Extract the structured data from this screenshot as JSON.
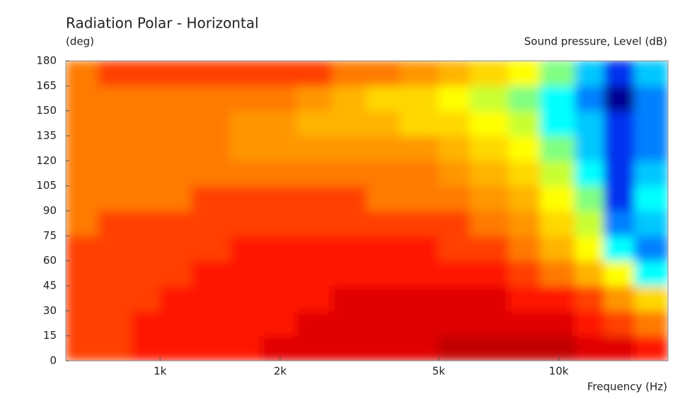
{
  "chart_data": {
    "type": "contour",
    "title": "Radiation Polar - Horizontal",
    "y_label": "(deg)",
    "z_label": "Sound pressure, Level  (dB)",
    "x_label": "Frequency  (Hz)",
    "log_x": true,
    "xlim": [
      580,
      18800
    ],
    "xticks": [
      {
        "value": 1000,
        "label": "1k"
      },
      {
        "value": 2000,
        "label": "2k"
      },
      {
        "value": 5000,
        "label": "5k"
      },
      {
        "value": 10000,
        "label": "10k"
      }
    ],
    "ylim": [
      0,
      180
    ],
    "yticks": [
      0,
      15,
      30,
      45,
      60,
      75,
      90,
      105,
      120,
      135,
      150,
      165,
      180
    ],
    "x_edges": [
      580,
      700,
      850,
      1000,
      1200,
      1500,
      1800,
      2200,
      2700,
      3300,
      4000,
      5000,
      6000,
      7500,
      9000,
      11000,
      13000,
      15500,
      18800
    ],
    "y_edges": [
      0,
      15,
      30,
      45,
      60,
      75,
      90,
      105,
      120,
      135,
      150,
      165,
      180
    ],
    "levels": [
      0,
      -3,
      -6,
      -9,
      -12,
      -15,
      -18,
      -21,
      -24,
      -27,
      -30,
      -33,
      -36,
      -39,
      -42,
      -45
    ],
    "colors": [
      "#c00000",
      "#e00000",
      "#ff1400",
      "#ff4000",
      "#ff7a00",
      "#ff9600",
      "#ffb400",
      "#ffd800",
      "#ffff00",
      "#c8ff30",
      "#80ff80",
      "#00ffff",
      "#00c8ff",
      "#0080ff",
      "#0030f0",
      "#000090"
    ],
    "z": [
      [
        -9,
        -9,
        -6,
        -6,
        -6,
        -6,
        -3,
        -3,
        -3,
        -3,
        -3,
        0,
        0,
        0,
        0,
        -3,
        -3,
        -6
      ],
      [
        -9,
        -9,
        -6,
        -6,
        -6,
        -6,
        -6,
        -3,
        -3,
        -3,
        -3,
        -3,
        -3,
        -3,
        -3,
        -6,
        -9,
        -12
      ],
      [
        -9,
        -9,
        -9,
        -6,
        -6,
        -6,
        -6,
        -6,
        -3,
        -3,
        -3,
        -3,
        -3,
        -6,
        -6,
        -9,
        -15,
        -21
      ],
      [
        -9,
        -9,
        -9,
        -9,
        -6,
        -6,
        -6,
        -6,
        -6,
        -6,
        -6,
        -6,
        -6,
        -9,
        -12,
        -18,
        -24,
        -33
      ],
      [
        -9,
        -9,
        -9,
        -9,
        -9,
        -6,
        -6,
        -6,
        -6,
        -6,
        -6,
        -9,
        -9,
        -12,
        -18,
        -24,
        -33,
        -39
      ],
      [
        -12,
        -9,
        -9,
        -9,
        -9,
        -9,
        -9,
        -9,
        -9,
        -9,
        -9,
        -9,
        -12,
        -15,
        -21,
        -27,
        -39,
        -36
      ],
      [
        -12,
        -12,
        -12,
        -12,
        -9,
        -9,
        -9,
        -9,
        -9,
        -12,
        -12,
        -12,
        -15,
        -18,
        -24,
        -30,
        -42,
        -33
      ],
      [
        -12,
        -12,
        -12,
        -12,
        -12,
        -12,
        -12,
        -12,
        -12,
        -12,
        -12,
        -15,
        -18,
        -21,
        -27,
        -33,
        -42,
        -36
      ],
      [
        -12,
        -12,
        -12,
        -12,
        -12,
        -15,
        -15,
        -15,
        -15,
        -15,
        -15,
        -18,
        -21,
        -24,
        -30,
        -36,
        -42,
        -39
      ],
      [
        -12,
        -12,
        -12,
        -12,
        -12,
        -15,
        -15,
        -18,
        -18,
        -18,
        -21,
        -21,
        -24,
        -27,
        -33,
        -36,
        -42,
        -39
      ],
      [
        -12,
        -12,
        -12,
        -12,
        -12,
        -12,
        -12,
        -15,
        -18,
        -21,
        -21,
        -24,
        -27,
        -30,
        -33,
        -39,
        -45,
        -39
      ],
      [
        -12,
        -9,
        -9,
        -9,
        -9,
        -9,
        -9,
        -9,
        -12,
        -12,
        -15,
        -18,
        -21,
        -24,
        -30,
        -36,
        -42,
        -36
      ]
    ]
  }
}
